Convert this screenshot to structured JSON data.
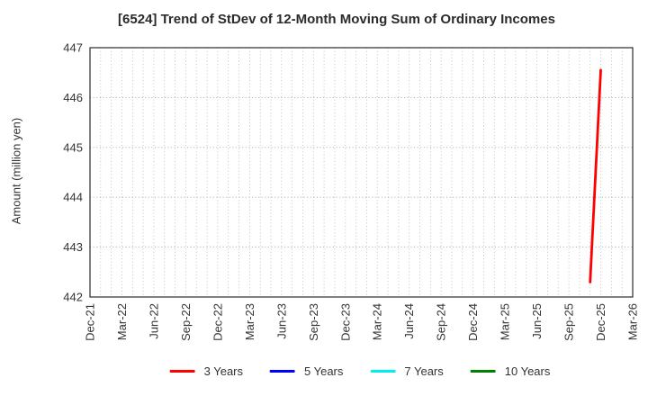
{
  "chart_data": {
    "type": "line",
    "title": "[6524]  Trend of StDev of 12-Month Moving Sum of Ordinary Incomes",
    "ylabel": "Amount (million yen)",
    "ylim": [
      442,
      447
    ],
    "y_ticks": [
      442,
      443,
      444,
      445,
      446,
      447
    ],
    "x_tick_labels": [
      "Dec-21",
      "Mar-22",
      "Jun-22",
      "Sep-22",
      "Dec-22",
      "Mar-23",
      "Jun-23",
      "Sep-23",
      "Dec-23",
      "Mar-24",
      "Jun-24",
      "Sep-24",
      "Dec-24",
      "Mar-25",
      "Jun-25",
      "Sep-25",
      "Dec-25",
      "Mar-26"
    ],
    "x_months_total": 51,
    "x_tick_step_months": 3,
    "grid": "dotted monthly vertical lines, dotted horizontal lines at each integer",
    "legend_position": "bottom center",
    "axis_color": "#2b2b2b",
    "grid_color": "#b5b5b5",
    "series": [
      {
        "name": "3 Years",
        "color": "#ff0000",
        "points": [
          {
            "label": "Nov-25",
            "month_index": 47,
            "value": 442.3
          },
          {
            "label": "Dec-25",
            "month_index": 48,
            "value": 446.55
          }
        ]
      },
      {
        "name": "5 Years",
        "color": "#0000ff",
        "points": []
      },
      {
        "name": "7 Years",
        "color": "#00eeee",
        "points": []
      },
      {
        "name": "10 Years",
        "color": "#008000",
        "points": []
      }
    ]
  }
}
